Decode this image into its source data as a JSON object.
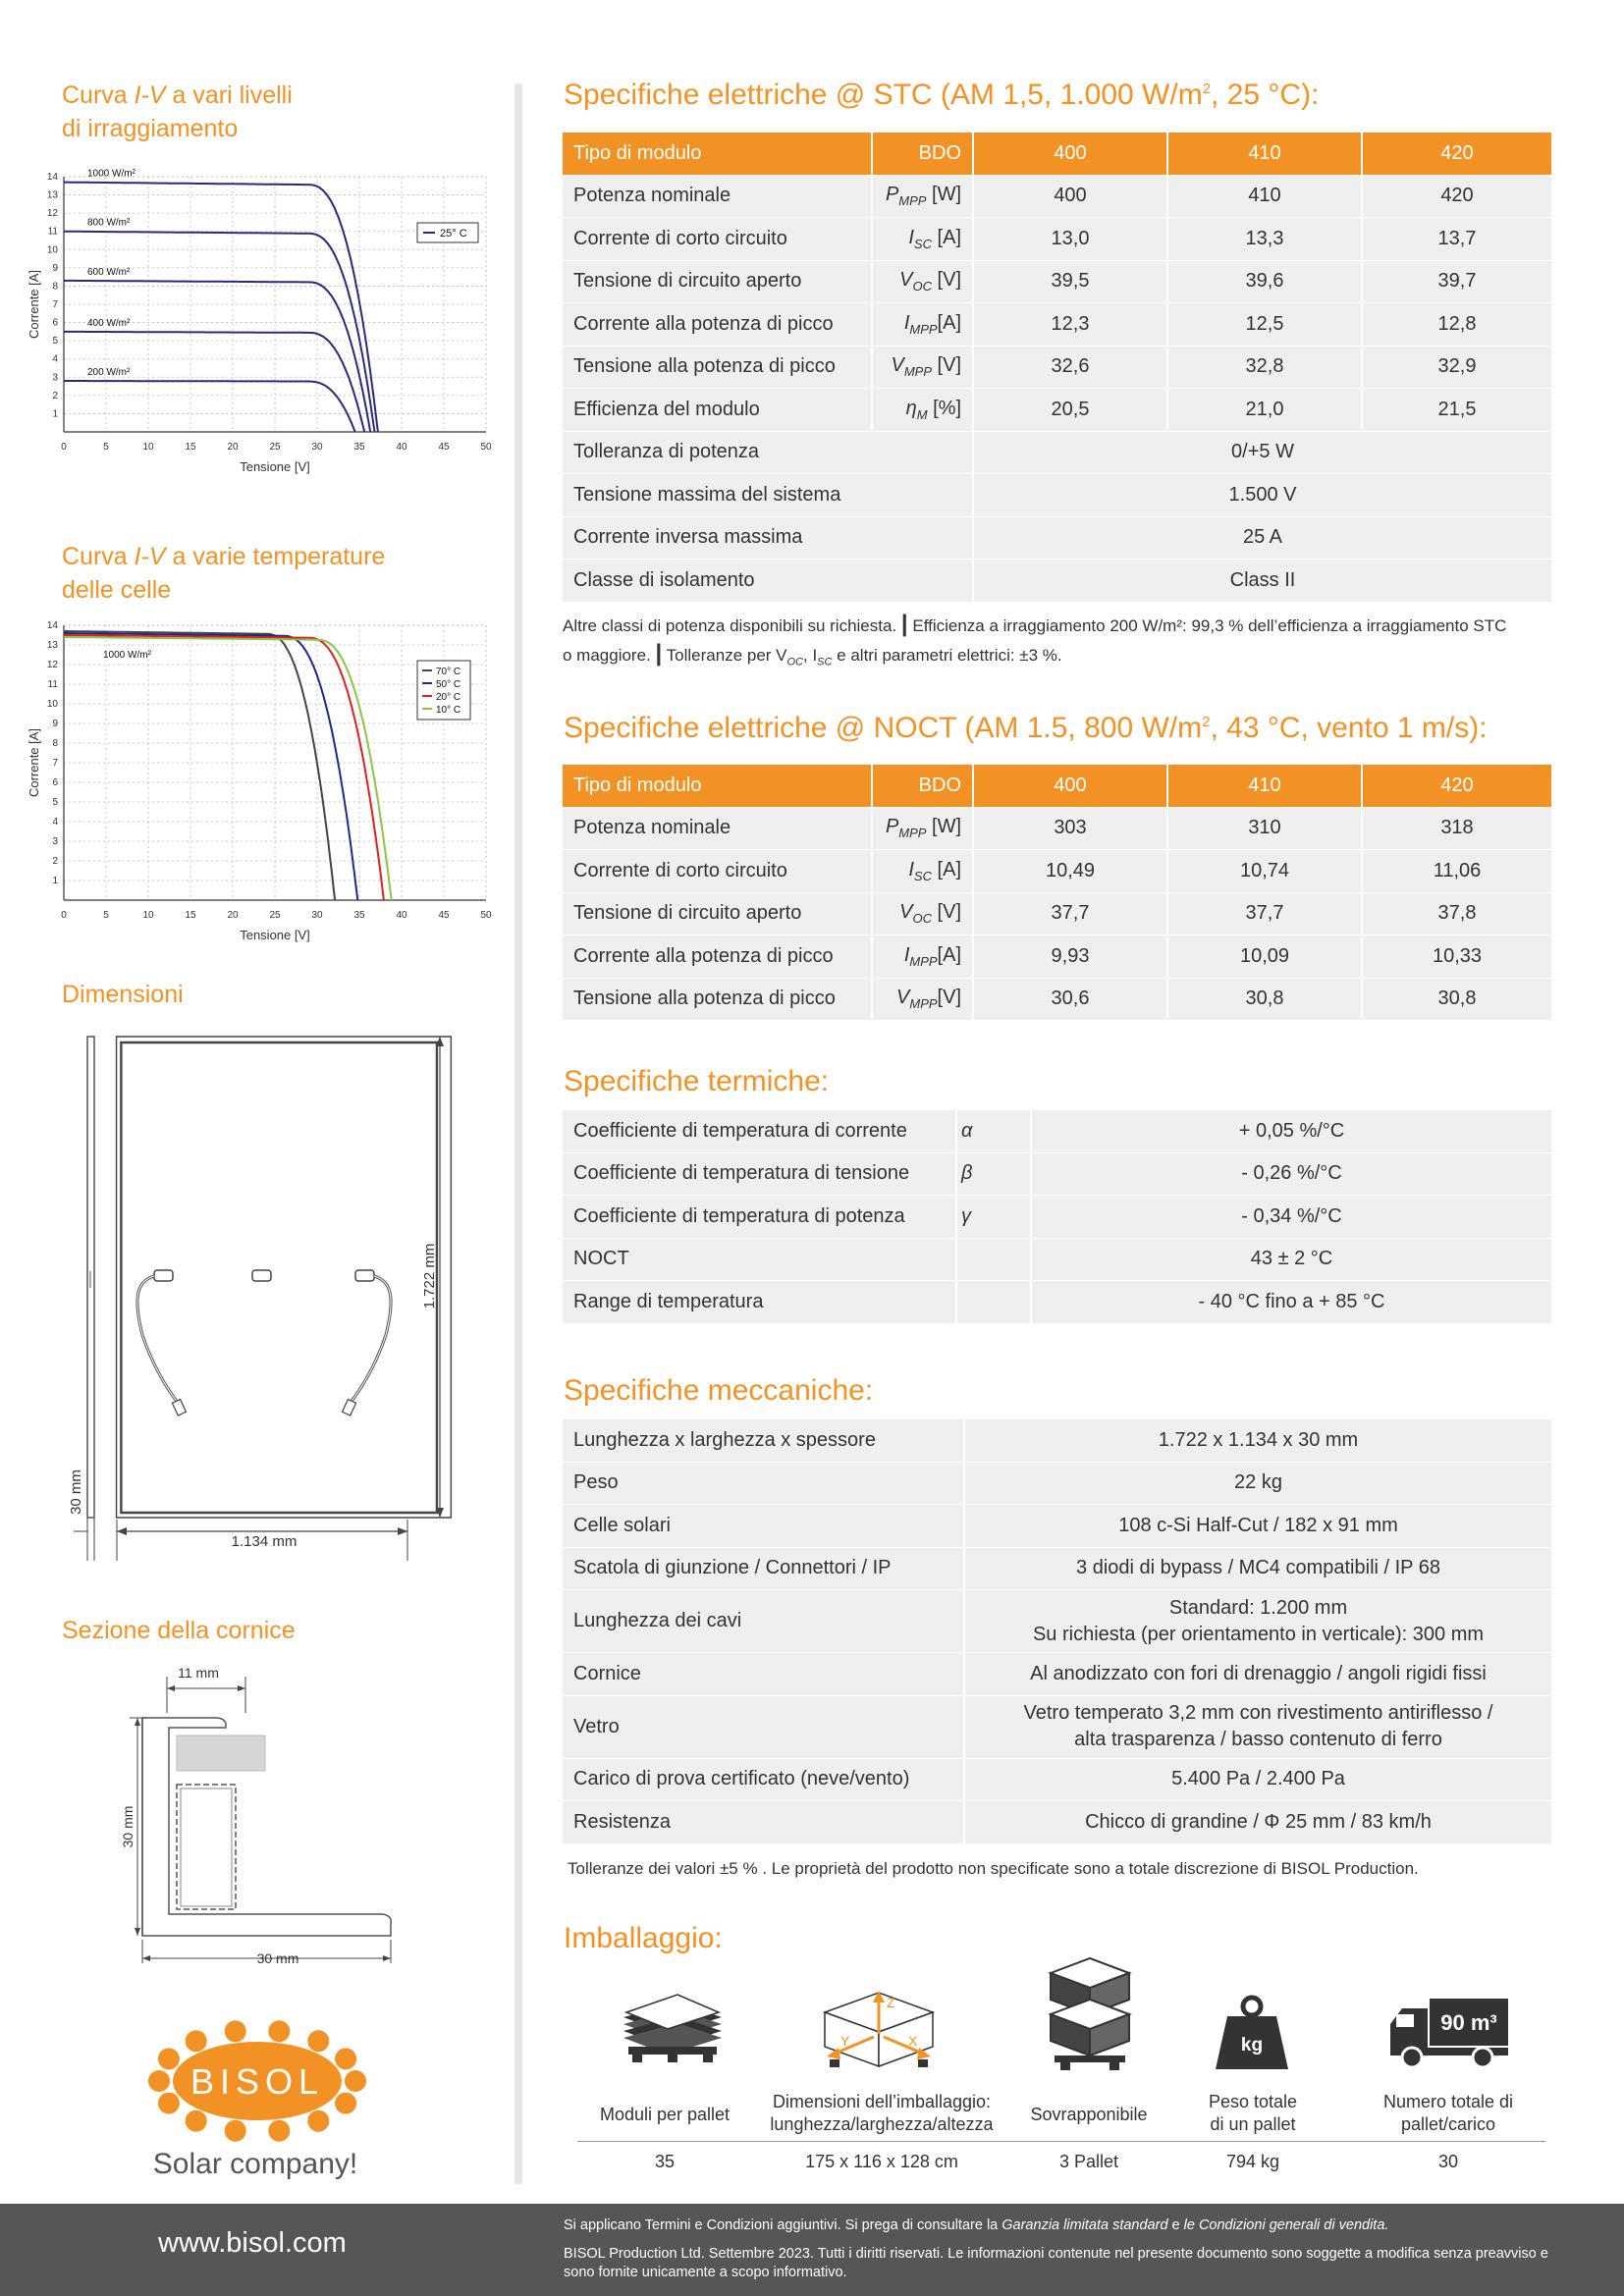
{
  "left": {
    "iv_irr": {
      "title_a": "Curva ",
      "title_b": "I-V",
      "title_c": " a vari livelli",
      "title_d": "di irraggiamento",
      "ylabel": "Corrente [A]",
      "xlabel": "Tensione [V]",
      "legend": "25° C"
    },
    "iv_temp": {
      "title_a": "Curva ",
      "title_b": "I-V",
      "title_c": " a varie temperature",
      "title_d": "delle celle",
      "ylabel": "Corrente [A]",
      "xlabel": "Tensione [V]",
      "curve_label": "1000 W/m²"
    },
    "dimensions": {
      "title": "Dimensioni",
      "height": "1.722  mm",
      "width": "1.134  mm",
      "depth": "30  mm"
    },
    "frame": {
      "title": "Sezione della cornice",
      "top": "11 mm",
      "height": "30 mm",
      "width": "30 mm"
    },
    "logo": {
      "brand": "BISOL",
      "tagline": "Solar company!"
    }
  },
  "stc": {
    "title": "Specifiche elettriche @ STC (AM 1,5, 1.000 W/m",
    "title_sup": "2",
    "title_end": ", 25 °C):",
    "head": {
      "label": "Tipo di modulo",
      "code": "BDO",
      "models": [
        "400",
        "410",
        "420"
      ]
    },
    "rows": [
      {
        "label": "Potenza nominale",
        "sym": "P",
        "sub": "MPP",
        "unit": " [W]",
        "values": [
          "400",
          "410",
          "420"
        ]
      },
      {
        "label": "Corrente di corto circuito",
        "sym": "I",
        "sub": "SC",
        "unit": " [A]",
        "values": [
          "13,0",
          "13,3",
          "13,7"
        ]
      },
      {
        "label": "Tensione di circuito aperto",
        "sym": "V",
        "sub": "OC",
        "unit": " [V]",
        "values": [
          "39,5",
          "39,6",
          "39,7"
        ]
      },
      {
        "label": "Corrente alla potenza di picco",
        "sym": "I",
        "sub": "MPP",
        "unit": "[A]",
        "values": [
          "12,3",
          "12,5",
          "12,8"
        ]
      },
      {
        "label": "Tensione alla potenza di picco",
        "sym": "V",
        "sub": "MPP",
        "unit": " [V]",
        "values": [
          "32,6",
          "32,8",
          "32,9"
        ]
      },
      {
        "label": "Efficienza del modulo",
        "sym": "η",
        "sub": "M",
        "unit": " [%]",
        "values": [
          "20,5",
          "21,0",
          "21,5"
        ]
      }
    ],
    "merged": [
      {
        "label": "Tolleranza di potenza",
        "value": "0/+5 W"
      },
      {
        "label": "Tensione massima del sistema",
        "value": "1.500 V"
      },
      {
        "label": "Corrente inversa massima",
        "value": "25 A"
      },
      {
        "label": "Classe di isolamento",
        "value": "Class II"
      }
    ],
    "note_a": "Altre classi di potenza disponibili su richiesta.",
    "note_b": "Efficienza a irraggiamento 200 W/m²: 99,3 % dell’efficienza a irraggiamento STC",
    "note_c": "o maggiore.",
    "note_d": "Tolleranze per V",
    "note_e": ", I",
    "note_f": " e altri parametri elettrici: ±3 %."
  },
  "noct": {
    "title": "Specifiche elettriche @ NOCT (AM 1.5, 800 W/m",
    "title_sup": "2",
    "title_end": ", 43 °C, vento 1 m/s):",
    "head": {
      "label": "Tipo di modulo",
      "code": "BDO",
      "models": [
        "400",
        "410",
        "420"
      ]
    },
    "rows": [
      {
        "label": "Potenza nominale",
        "sym": "P",
        "sub": "MPP",
        "unit": " [W]",
        "values": [
          "303",
          "310",
          "318"
        ]
      },
      {
        "label": "Corrente di corto circuito",
        "sym": "I",
        "sub": "SC",
        "unit": " [A]",
        "values": [
          "10,49",
          "10,74",
          "11,06"
        ]
      },
      {
        "label": "Tensione di circuito aperto",
        "sym": "V",
        "sub": "OC",
        "unit": " [V]",
        "values": [
          "37,7",
          "37,7",
          "37,8"
        ]
      },
      {
        "label": "Corrente alla potenza di picco",
        "sym": "I",
        "sub": "MPP",
        "unit": "[A]",
        "values": [
          "9,93",
          "10,09",
          "10,33"
        ]
      },
      {
        "label": "Tensione alla potenza di picco",
        "sym": "V",
        "sub": "MPP",
        "unit": "[V]",
        "values": [
          "30,6",
          "30,8",
          "30,8"
        ]
      }
    ]
  },
  "thermal": {
    "title": "Specifiche termiche:",
    "rows": [
      {
        "label": "Coefficiente di temperatura di corrente",
        "sym": "α",
        "value": "+ 0,05 %/°C"
      },
      {
        "label": "Coefficiente di temperatura di tensione",
        "sym": "β",
        "value": "- 0,26 %/°C"
      },
      {
        "label": "Coefficiente di temperatura di potenza",
        "sym": "γ",
        "value": "- 0,34 %/°C"
      },
      {
        "label": "NOCT",
        "sym": "",
        "value": "43 ± 2 °C"
      },
      {
        "label": "Range di temperatura",
        "sym": "",
        "value": "- 40 °C fino a + 85 °C"
      }
    ]
  },
  "mech": {
    "title": "Specifiche meccaniche:",
    "rows": [
      {
        "label": "Lunghezza x larghezza x spessore",
        "value": "1.722 x 1.134 x 30 mm",
        "value2": ""
      },
      {
        "label": "Peso",
        "value": "22 kg",
        "value2": ""
      },
      {
        "label": "Celle solari",
        "value": "108 c-Si Half-Cut / 182 x 91 mm",
        "value2": ""
      },
      {
        "label": "Scatola di giunzione / Connettori / IP",
        "value": "3 diodi di bypass / MC4 compatibili / IP 68",
        "value2": ""
      },
      {
        "label": "Lunghezza dei cavi",
        "value": "Standard: 1.200 mm",
        "value2": "Su richiesta (per orientamento in verticale): 300 mm"
      },
      {
        "label": "Cornice",
        "value": "Al anodizzato con fori di drenaggio / angoli rigidi fissi",
        "value2": ""
      },
      {
        "label": "Vetro",
        "value": "Vetro temperato 3,2 mm con rivestimento antiriflesso /",
        "value2": "alta trasparenza / basso contenuto di ferro"
      },
      {
        "label": "Carico di prova certificato (neve/vento)",
        "value": "5.400 Pa / 2.400 Pa",
        "value2": ""
      },
      {
        "label": "Resistenza",
        "value": "Chicco di grandine / Φ 25 mm / 83 km/h",
        "value2": ""
      }
    ],
    "note": "Tolleranze dei valori ±5 % . Le proprietà del prodotto non specificate sono a totale discrezione di BISOL Production."
  },
  "packaging": {
    "title": "Imballaggio:",
    "truck_label": "90 m³",
    "items": [
      {
        "label": "Moduli per pallet",
        "label2": "",
        "value": "35"
      },
      {
        "label": "Dimensioni dell’imballaggio:",
        "label2": "lunghezza/larghezza/altezza",
        "value": "175 x 116 x 128 cm"
      },
      {
        "label": "Sovrapponibile",
        "label2": "",
        "value": "3 Pallet"
      },
      {
        "label": "Peso totale",
        "label2": "di un pallet",
        "value": "794 kg"
      },
      {
        "label": "Numero totale di",
        "label2": "pallet/carico",
        "value": "30"
      }
    ]
  },
  "footer": {
    "url": "www.bisol.com",
    "line1_a": "Si applicano Termini e Condizioni aggiuntivi. Si prega di consultare la ",
    "line1_b": "Garanzia limitata standard",
    "line1_c": " e ",
    "line1_d": "le Condizioni generali di vendita.",
    "line2": "BISOL Production Ltd. Settembre 2023.  Tutti i diritti riservati. Le informazioni contenute nel presente documento sono soggette a modifica senza preavviso e sono fornite unicamente a scopo informativo."
  },
  "chart_data": [
    {
      "type": "line",
      "xlabel": "Tensione [V]",
      "ylabel": "Corrente [A]",
      "xlim": [
        0,
        50
      ],
      "ylim": [
        0,
        14
      ],
      "x_ticks": [
        0,
        5,
        10,
        15,
        20,
        25,
        30,
        35,
        40,
        45,
        50
      ],
      "y_ticks": [
        1,
        2,
        3,
        4,
        5,
        6,
        7,
        8,
        9,
        10,
        11,
        12,
        13,
        14
      ],
      "legend": [
        "25° C"
      ],
      "legend_position": "right",
      "grid": true,
      "series": [
        {
          "name": "1000 W/m²",
          "isc": 13.7,
          "voc": 37.2,
          "knee": 29
        },
        {
          "name": "800 W/m²",
          "isc": 11.0,
          "voc": 36.8,
          "knee": 29
        },
        {
          "name": "600 W/m²",
          "isc": 8.3,
          "voc": 36.3,
          "knee": 29
        },
        {
          "name": "400 W/m²",
          "isc": 5.5,
          "voc": 35.6,
          "knee": 29
        },
        {
          "name": "200 W/m²",
          "isc": 2.8,
          "voc": 34.5,
          "knee": 29
        }
      ],
      "color": "#2a2a7a"
    },
    {
      "type": "line",
      "xlabel": "Tensione [V]",
      "ylabel": "Corrente [A]",
      "xlim": [
        0,
        50
      ],
      "ylim": [
        0,
        14
      ],
      "x_ticks": [
        0,
        5,
        10,
        15,
        20,
        25,
        30,
        35,
        40,
        45,
        50
      ],
      "y_ticks": [
        1,
        2,
        3,
        4,
        5,
        6,
        7,
        8,
        9,
        10,
        11,
        12,
        13,
        14
      ],
      "legend_position": "right",
      "grid": true,
      "series": [
        {
          "name": "70° C",
          "isc": 13.7,
          "voc": 32.1,
          "knee": 24,
          "color": "#444444"
        },
        {
          "name": "50° C",
          "isc": 13.6,
          "voc": 34.8,
          "knee": 26,
          "color": "#1e2a8a"
        },
        {
          "name": "20° C",
          "isc": 13.5,
          "voc": 37.9,
          "knee": 29,
          "color": "#e02020"
        },
        {
          "name": "10° C",
          "isc": 13.4,
          "voc": 38.8,
          "knee": 30,
          "color": "#8cc63f"
        }
      ]
    }
  ]
}
